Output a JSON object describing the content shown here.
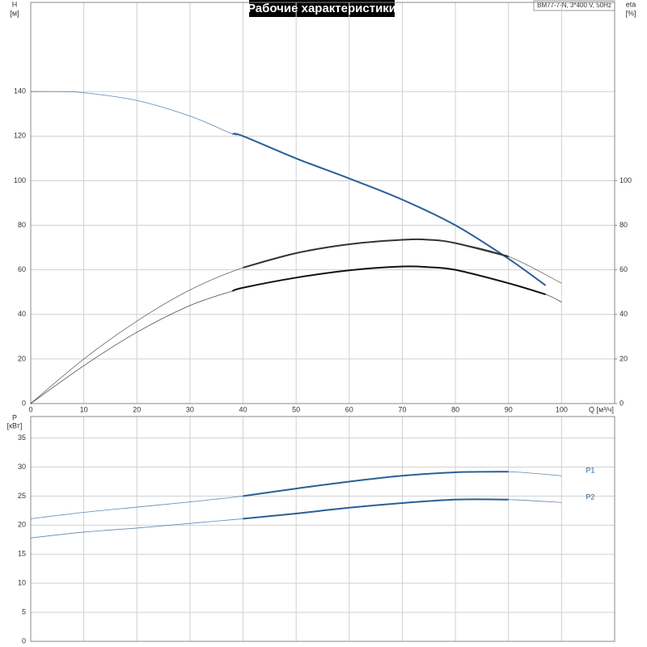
{
  "chart_data": [
    {
      "type": "line",
      "title": "Рабочие характеристики",
      "model": "BM77-7-N, 3*400 V, 50Hz",
      "xlabel": "Q [м³/ч]",
      "ylabel": "H",
      "yunit": "[м]",
      "y2label": "eta",
      "y2unit": "[%]",
      "xlim": [
        0,
        110
      ],
      "xticks": [
        0,
        10,
        20,
        30,
        40,
        50,
        60,
        70,
        80,
        90,
        100
      ],
      "ylim": [
        0,
        180
      ],
      "yticks": [
        0,
        20,
        40,
        60,
        80,
        100,
        120,
        140
      ],
      "y2lim": [
        0,
        180
      ],
      "y2ticks": [
        0,
        20,
        40,
        60,
        80,
        100
      ],
      "grid": true,
      "duty_range": [
        38,
        97
      ],
      "series": [
        {
          "color": "#2a5f96",
          "x": [
            0,
            5,
            10,
            20,
            30,
            38,
            40,
            50,
            60,
            70,
            80,
            90,
            97
          ],
          "values": [
            140,
            140,
            139.5,
            136,
            129,
            121,
            120,
            110,
            101,
            91.5,
            80,
            65,
            53
          ]
        },
        {
          "color": "#333333",
          "axis": "y2",
          "x": [
            0,
            10,
            20,
            30,
            40,
            50,
            60,
            70,
            75,
            80,
            90,
            100
          ],
          "values": [
            0,
            20,
            37,
            51,
            61,
            67.5,
            71.5,
            73.5,
            73.5,
            72,
            66,
            54
          ]
        },
        {
          "color": "#111111",
          "axis": "y2",
          "x": [
            0,
            10,
            20,
            30,
            38,
            40,
            50,
            60,
            70,
            75,
            80,
            90,
            97,
            100
          ],
          "values": [
            0,
            17,
            32,
            44,
            50.5,
            52,
            56.5,
            59.8,
            61.5,
            61.2,
            60,
            54,
            49,
            45.5
          ]
        }
      ]
    },
    {
      "type": "line",
      "ylabel": "P",
      "yunit": "[кВт]",
      "shared_x": true,
      "xlim": [
        0,
        110
      ],
      "ylim": [
        0,
        38.7
      ],
      "yticks": [
        0,
        5,
        10,
        15,
        20,
        25,
        30,
        35
      ],
      "grid": true,
      "duty_range": [
        38,
        97
      ],
      "series": [
        {
          "name": "P1",
          "color": "#2a5f96",
          "x": [
            0,
            10,
            20,
            30,
            40,
            50,
            60,
            70,
            80,
            90,
            100
          ],
          "values": [
            21.1,
            22.2,
            23.1,
            24,
            25,
            26.3,
            27.5,
            28.5,
            29.1,
            29.2,
            28.5
          ]
        },
        {
          "name": "P2",
          "color": "#2a5f96",
          "x": [
            0,
            10,
            20,
            30,
            40,
            50,
            60,
            70,
            80,
            90,
            100
          ],
          "values": [
            17.8,
            18.8,
            19.5,
            20.3,
            21.1,
            22,
            23,
            23.8,
            24.4,
            24.4,
            23.9
          ]
        }
      ]
    }
  ]
}
